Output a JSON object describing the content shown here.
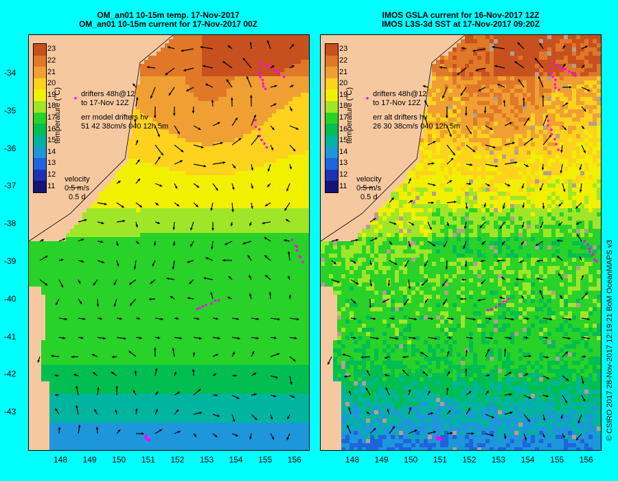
{
  "left_panel": {
    "title_line1": "OM_an01 10-15m temp. 17-Nov-2017",
    "title_line2": "OM_an01 10-15m current for 17-Nov-2017 00Z",
    "drifter_legend_line1": "drifters 48h@12",
    "drifter_legend_line2": "to 17-Nov 12Z",
    "err_line1": "err model drifters hv",
    "err_line2": "51 42 38cm/s 040 12h 5m",
    "velocity_title": "velocity",
    "velocity_speed": "0.5 m/s",
    "velocity_time": "0.5 d"
  },
  "right_panel": {
    "title_line1": "IMOS GSLA current for 16-Nov-2017 12Z",
    "title_line2": "IMOS L3S-3d SST at 17-Nov-2017 09:20Z",
    "drifter_legend_line1": "drifters 48h@12",
    "drifter_legend_line2": "to 17-Nov 12Z",
    "err_line1": "err alt drifters hv",
    "err_line2": "26 30 38cm/s 040 12h 5m",
    "velocity_title": "velocity",
    "velocity_speed": "0.5 m/s",
    "velocity_time": "0.5 d"
  },
  "colorbar": {
    "label": "temperature (°C)",
    "ticks": [
      "23",
      "22",
      "21",
      "20",
      "19",
      "18",
      "17",
      "16",
      "15",
      "14",
      "13",
      "12",
      "11"
    ],
    "colors": [
      "#c8501e",
      "#e07828",
      "#f0a032",
      "#ffd21e",
      "#f0f000",
      "#a0e628",
      "#28d228",
      "#00be50",
      "#00b4a0",
      "#1e96dc",
      "#1e64dc",
      "#1e32b4",
      "#141478"
    ]
  },
  "axes": {
    "y_ticks": [
      "-34",
      "-35",
      "-36",
      "-37",
      "-38",
      "-39",
      "-40",
      "-41",
      "-42",
      "-43"
    ],
    "x_ticks": [
      "148",
      "149",
      "150",
      "151",
      "152",
      "153",
      "154",
      "155",
      "156"
    ]
  },
  "credit": "© CSIRO 2017   28-Nov-2017 12:19:21 BoM OceanMAPS v3",
  "colors": {
    "background": "#00ffff",
    "land": "#f6c8a0",
    "drifter": "#ff00ff",
    "arrow": "#000000"
  }
}
